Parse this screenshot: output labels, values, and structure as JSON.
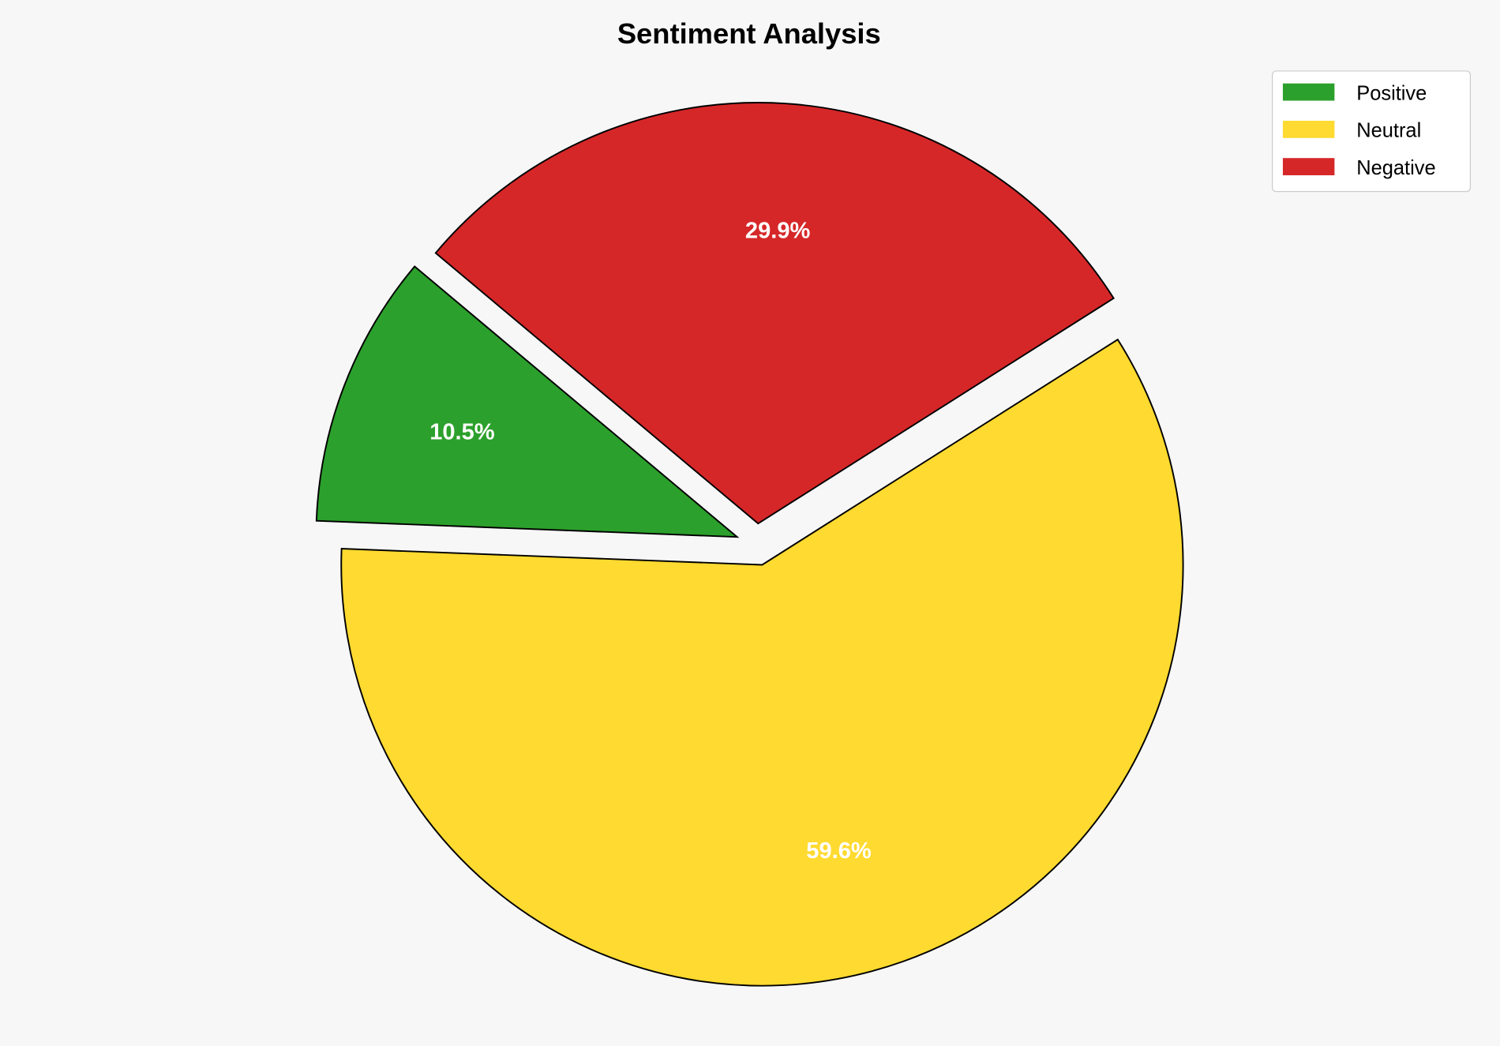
{
  "chart_data": {
    "type": "pie",
    "title": "Sentiment Analysis",
    "categories": [
      "Positive",
      "Neutral",
      "Negative"
    ],
    "values": [
      10.5,
      59.6,
      29.9
    ],
    "labels": [
      "10.5%",
      "59.6%",
      "29.9%"
    ],
    "colors": [
      "#2ca02c",
      "#ffda30",
      "#d62728"
    ],
    "start_angle_deg": 140,
    "exploded": [
      true,
      true,
      true
    ],
    "legend_position": "top-right",
    "edge_color": "#000000",
    "background": "#f7f7f7"
  }
}
